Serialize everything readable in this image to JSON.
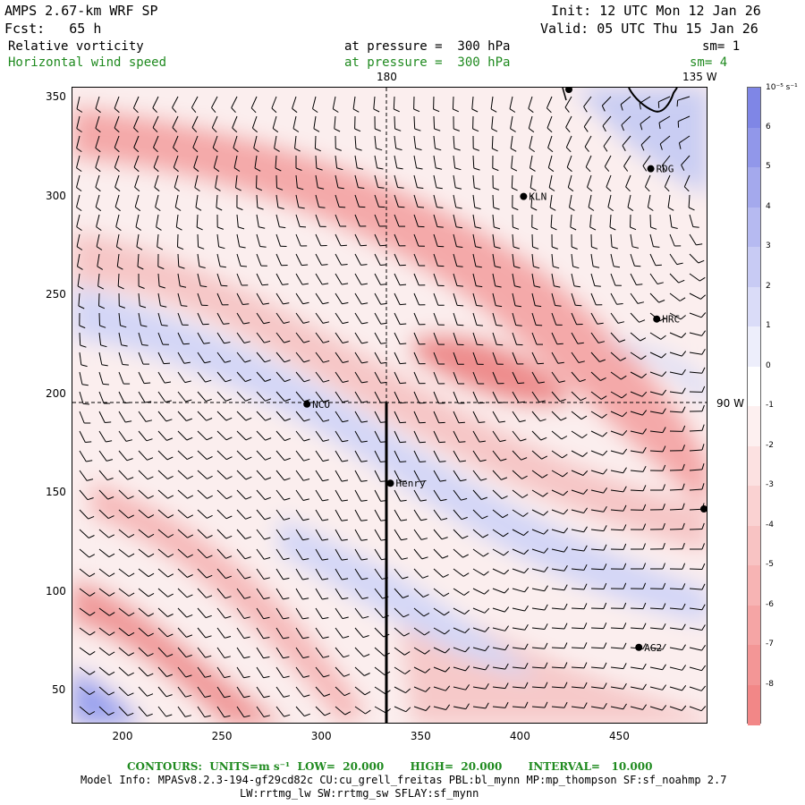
{
  "header": {
    "model": "AMPS 2.67-km WRF SP",
    "init": "Init: 12 UTC Mon 12 Jan 26",
    "fcst": "Fcst:   65 h",
    "valid": "Valid: 05 UTC Thu 15 Jan 26"
  },
  "fields": [
    {
      "name": "Relative vorticity",
      "pressure": "at pressure =  300 hPa",
      "sm": "sm= 1",
      "color": "#000000"
    },
    {
      "name": "Horizontal wind speed",
      "pressure": "at pressure =  300 hPa",
      "sm": "sm= 4",
      "color": "#1f8a1f"
    }
  ],
  "map": {
    "lon_top_label": "180",
    "lon_corner_label": "135 W",
    "lon_right_label": "90 W",
    "x_ticks": [
      "200",
      "250",
      "300",
      "350",
      "400",
      "450"
    ],
    "y_ticks": [
      "350",
      "300",
      "250",
      "200",
      "150",
      "100",
      "50"
    ],
    "x_range": [
      175,
      495
    ],
    "y_range": [
      33,
      355
    ],
    "stations": [
      {
        "name": "KLN",
        "x": 402,
        "y": 300
      },
      {
        "name": "RDG",
        "x": 466,
        "y": 314
      },
      {
        "name": "HRC",
        "x": 469,
        "y": 238
      },
      {
        "name": "NCO",
        "x": 293,
        "y": 195
      },
      {
        "name": "Henry",
        "x": 335,
        "y": 155
      },
      {
        "name": "AG2",
        "x": 460,
        "y": 72
      }
    ]
  },
  "colorbar": {
    "unit": "10⁻⁵ s⁻¹",
    "labels": [
      "6",
      "5",
      "4",
      "3",
      "2",
      "1",
      "0",
      "-1",
      "-2",
      "-3",
      "-4",
      "-5",
      "-6",
      "-7",
      "-8"
    ],
    "pos_color": "#7f86e6",
    "neg_color": "#f07878"
  },
  "footer": {
    "contours": "CONTOURS:  UNITS=m s⁻¹  LOW=  20.000       HIGH=  20.000       INTERVAL=   10.000",
    "model_info": "Model Info: MPASv8.2.3-194-gf29cd82c CU:cu_grell_freitas PBL:bl_mynn MP:mp_thompson SF:sf_noahmp 2.7",
    "model_info2": "LW:rrtmg_lw SW:rrtmg_sw SFLAY:sf_mynn"
  }
}
